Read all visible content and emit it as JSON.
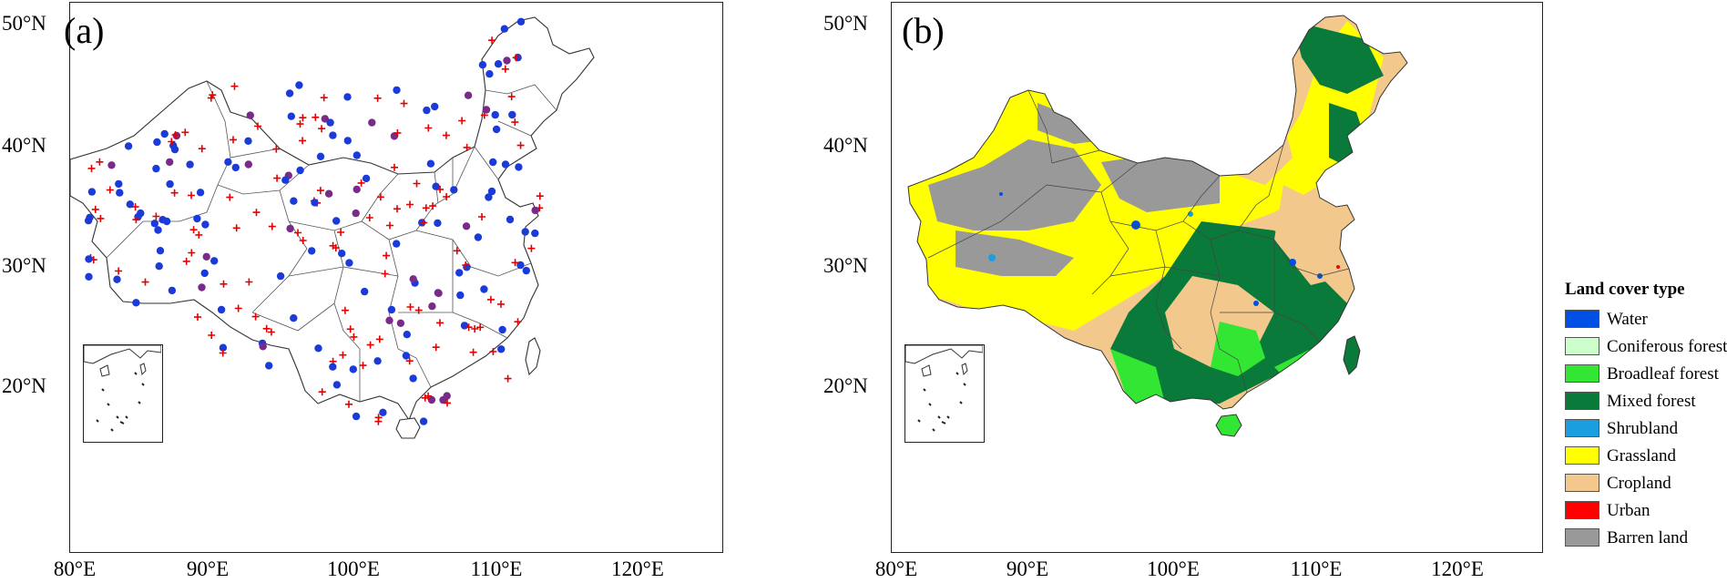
{
  "panels": [
    {
      "id": "a",
      "label": "(a)"
    },
    {
      "id": "b",
      "label": "(b)"
    }
  ],
  "latitude_labels": [
    "50°N",
    "40°N",
    "30°N",
    "20°N"
  ],
  "longitude_labels": [
    "80°E",
    "90°E",
    "100°E",
    "110°E",
    "120°E"
  ],
  "legend": {
    "title": "Land cover type",
    "items": [
      {
        "label": "Water",
        "color": "#0050e6"
      },
      {
        "label": "Coniferous forest",
        "color": "#ccffcc"
      },
      {
        "label": "Broadleaf forest",
        "color": "#33e633"
      },
      {
        "label": "Mixed forest",
        "color": "#0a7a3a"
      },
      {
        "label": "Shrubland",
        "color": "#1a9ee0"
      },
      {
        "label": "Grassland",
        "color": "#ffff00"
      },
      {
        "label": "Cropland",
        "color": "#f2c88c"
      },
      {
        "label": "Urban",
        "color": "#ff0000"
      },
      {
        "label": "Barren land",
        "color": "#999999"
      }
    ]
  },
  "marker_colors": {
    "station_dot": "#1a3ad9",
    "station_plus": "#e60000",
    "station_overlap": "#7a2a8a"
  }
}
